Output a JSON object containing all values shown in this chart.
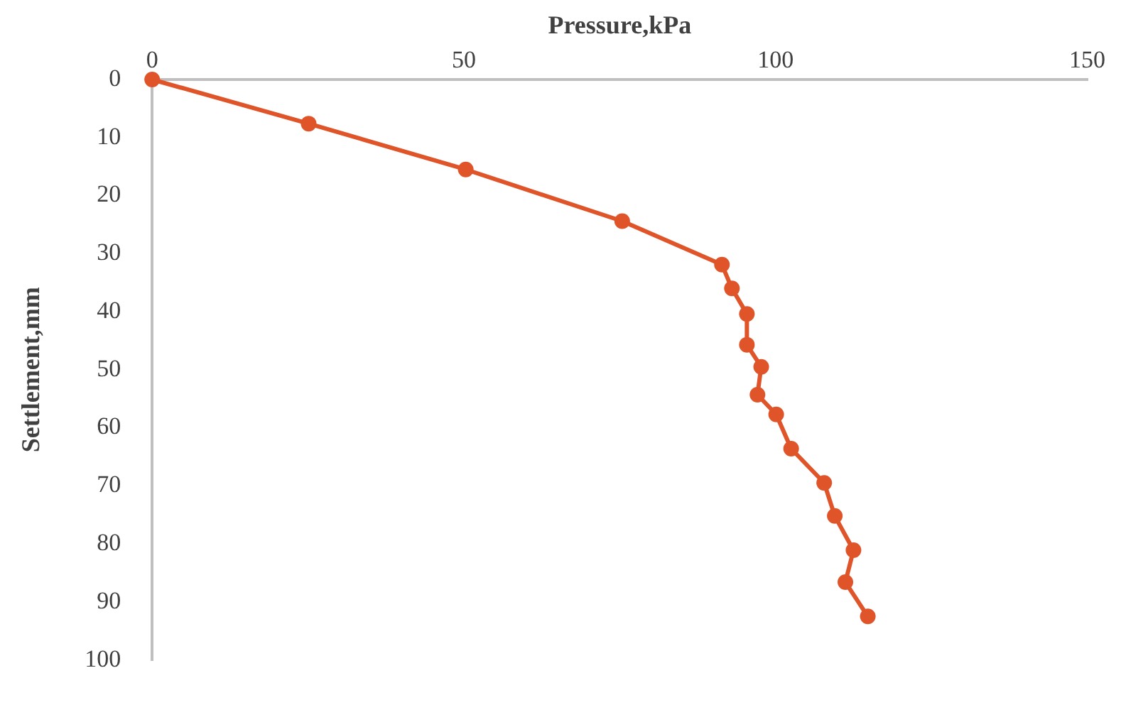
{
  "chart_data": {
    "type": "line",
    "xlabel": "Pressure,kPa",
    "ylabel": "Settlement,mm",
    "xlim": [
      0,
      150
    ],
    "xticks": [
      0,
      50,
      100,
      150
    ],
    "ylim": [
      100,
      0
    ],
    "yticks": [
      0,
      10,
      20,
      30,
      40,
      50,
      60,
      70,
      80,
      90,
      100
    ],
    "grid": false,
    "legend": false,
    "marker": "circle",
    "line_style": "solid",
    "series": [
      {
        "color": "#e0542a",
        "x": [
          0,
          25.1,
          50.3,
          75.4,
          91.4,
          93.0,
          95.4,
          95.4,
          97.7,
          97.1,
          100.1,
          102.5,
          107.8,
          109.5,
          112.5,
          111.2,
          114.8
        ],
        "values": [
          0,
          7.6,
          15.5,
          24.4,
          31.9,
          36.0,
          40.4,
          45.7,
          49.5,
          54.3,
          57.7,
          63.6,
          69.5,
          75.2,
          81.1,
          86.6,
          92.5
        ]
      }
    ]
  }
}
